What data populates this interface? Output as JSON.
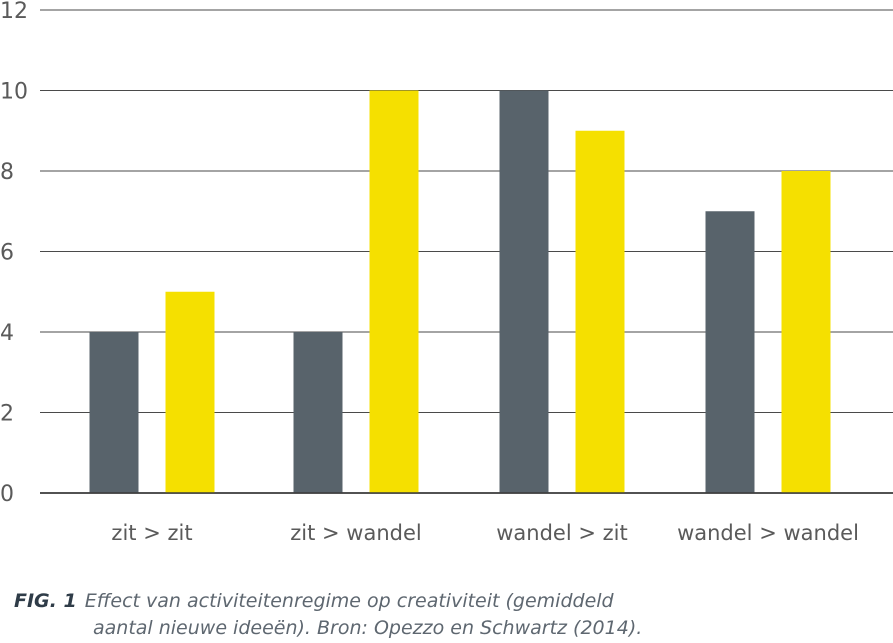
{
  "chart_data": {
    "type": "bar",
    "categories": [
      "zit > zit",
      "zit > wandel",
      "wandel > zit",
      "wandel > wandel"
    ],
    "series": [
      {
        "values": [
          4,
          4,
          10,
          7
        ],
        "color": "#58636b"
      },
      {
        "values": [
          5,
          10,
          9,
          8
        ],
        "color": "#f5e000"
      }
    ],
    "ylim": [
      0,
      12
    ],
    "yticks": [
      0,
      2,
      4,
      6,
      8,
      10,
      12
    ],
    "grid": true,
    "xlabel": "",
    "ylabel": ""
  },
  "caption": {
    "label": "FIG. 1",
    "line1": "Effect van activiteitenregime op creativiteit (gemiddeld",
    "line2": "aantal nieuwe ideeën). Bron: Opezzo en Schwartz (2014)."
  }
}
